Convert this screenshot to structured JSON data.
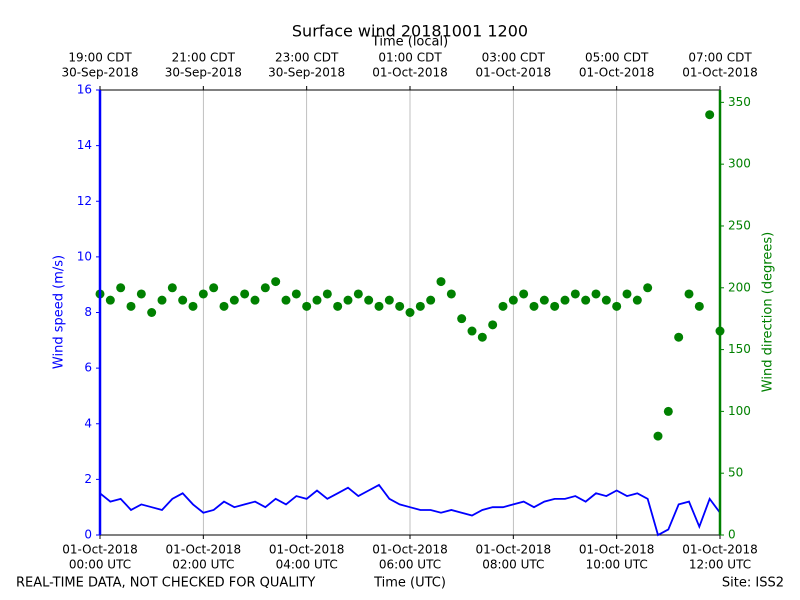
{
  "chart_data": {
    "type": "line",
    "title": "Surface wind 20181001 1200",
    "x_label": "Time (UTC)",
    "x2_label": "Time (local)",
    "y_label": "Wind speed (m/s)",
    "y2_label": "Wind direction (degrees)",
    "footer_left": "REAL-TIME DATA, NOT CHECKED FOR QUALITY",
    "footer_right": "Site: ISS2",
    "xlim": [
      0,
      12
    ],
    "xticks": [
      {
        "value": 0,
        "label": [
          "01-Oct-2018",
          "00:00 UTC"
        ]
      },
      {
        "value": 2,
        "label": [
          "01-Oct-2018",
          "02:00 UTC"
        ]
      },
      {
        "value": 4,
        "label": [
          "01-Oct-2018",
          "04:00 UTC"
        ]
      },
      {
        "value": 6,
        "label": [
          "01-Oct-2018",
          "06:00 UTC"
        ]
      },
      {
        "value": 8,
        "label": [
          "01-Oct-2018",
          "08:00 UTC"
        ]
      },
      {
        "value": 10,
        "label": [
          "01-Oct-2018",
          "10:00 UTC"
        ]
      },
      {
        "value": 12,
        "label": [
          "01-Oct-2018",
          "12:00 UTC"
        ]
      }
    ],
    "x2ticks": [
      {
        "value": 0,
        "label": [
          "19:00 CDT",
          "30-Sep-2018"
        ]
      },
      {
        "value": 2,
        "label": [
          "21:00 CDT",
          "30-Sep-2018"
        ]
      },
      {
        "value": 4,
        "label": [
          "23:00 CDT",
          "30-Sep-2018"
        ]
      },
      {
        "value": 6,
        "label": [
          "01:00 CDT",
          "01-Oct-2018"
        ]
      },
      {
        "value": 8,
        "label": [
          "03:00 CDT",
          "01-Oct-2018"
        ]
      },
      {
        "value": 10,
        "label": [
          "05:00 CDT",
          "01-Oct-2018"
        ]
      },
      {
        "value": 12,
        "label": [
          "07:00 CDT",
          "01-Oct-2018"
        ]
      }
    ],
    "ylim": [
      0,
      16
    ],
    "yticks": [
      0,
      2,
      4,
      6,
      8,
      10,
      12,
      14,
      16
    ],
    "y2lim": [
      0,
      360
    ],
    "y2ticks": [
      0,
      50,
      100,
      150,
      200,
      250,
      300,
      350
    ],
    "grid": true,
    "series": [
      {
        "type": "line",
        "color": "#0000ff",
        "x": [
          0,
          0.2,
          0.4,
          0.6,
          0.8,
          1,
          1.2,
          1.4,
          1.6,
          1.8,
          2,
          2.2,
          2.4,
          2.6,
          2.8,
          3,
          3.2,
          3.4,
          3.6,
          3.8,
          4,
          4.2,
          4.4,
          4.6,
          4.8,
          5,
          5.2,
          5.4,
          5.6,
          5.8,
          6,
          6.2,
          6.4,
          6.6,
          6.8,
          7,
          7.2,
          7.4,
          7.6,
          7.8,
          8,
          8.2,
          8.4,
          8.6,
          8.8,
          9,
          9.2,
          9.4,
          9.6,
          9.8,
          10,
          10.2,
          10.4,
          10.6,
          10.8,
          11,
          11.2,
          11.4,
          11.6,
          11.8,
          12
        ],
        "values": [
          1.5,
          1.2,
          1.3,
          0.9,
          1.1,
          1.0,
          0.9,
          1.3,
          1.5,
          1.1,
          0.8,
          0.9,
          1.2,
          1.0,
          1.1,
          1.2,
          1.0,
          1.3,
          1.1,
          1.4,
          1.3,
          1.6,
          1.3,
          1.5,
          1.7,
          1.4,
          1.6,
          1.8,
          1.3,
          1.1,
          1.0,
          0.9,
          0.9,
          0.8,
          0.9,
          0.8,
          0.7,
          0.9,
          1.0,
          1.0,
          1.1,
          1.2,
          1.0,
          1.2,
          1.3,
          1.3,
          1.4,
          1.2,
          1.5,
          1.4,
          1.6,
          1.4,
          1.5,
          1.3,
          0.0,
          0.2,
          1.1,
          1.2,
          0.3,
          1.3,
          0.8
        ]
      },
      {
        "type": "scatter",
        "axis": "y2",
        "color": "#008000",
        "x": [
          0,
          0.2,
          0.4,
          0.6,
          0.8,
          1,
          1.2,
          1.4,
          1.6,
          1.8,
          2,
          2.2,
          2.4,
          2.6,
          2.8,
          3,
          3.2,
          3.4,
          3.6,
          3.8,
          4,
          4.2,
          4.4,
          4.6,
          4.8,
          5,
          5.2,
          5.4,
          5.6,
          5.8,
          6,
          6.2,
          6.4,
          6.6,
          6.8,
          7,
          7.2,
          7.4,
          7.6,
          7.8,
          8,
          8.2,
          8.4,
          8.6,
          8.8,
          9,
          9.2,
          9.4,
          9.6,
          9.8,
          10,
          10.2,
          10.4,
          10.6,
          10.8,
          11,
          11.2,
          11.4,
          11.6,
          11.8,
          12
        ],
        "values": [
          195,
          190,
          200,
          185,
          195,
          180,
          190,
          200,
          190,
          185,
          195,
          200,
          185,
          190,
          195,
          190,
          200,
          205,
          190,
          195,
          185,
          190,
          195,
          185,
          190,
          195,
          190,
          185,
          190,
          185,
          180,
          185,
          190,
          205,
          195,
          175,
          165,
          160,
          170,
          185,
          190,
          195,
          185,
          190,
          185,
          190,
          195,
          190,
          195,
          190,
          185,
          195,
          190,
          200,
          80,
          100,
          160,
          195,
          185,
          340,
          165
        ]
      }
    ]
  }
}
